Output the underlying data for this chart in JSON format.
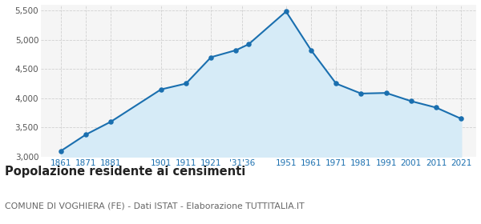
{
  "years": [
    1861,
    1871,
    1881,
    1901,
    1911,
    1921,
    1931,
    1936,
    1951,
    1961,
    1971,
    1981,
    1991,
    2001,
    2011,
    2021
  ],
  "population": [
    3100,
    3380,
    3600,
    4150,
    4250,
    4700,
    4820,
    4920,
    5480,
    4820,
    4250,
    4080,
    4090,
    3950,
    3840,
    3650
  ],
  "x_tick_labels": [
    "1861",
    "1871",
    "1881",
    "1901",
    "1911",
    "1921",
    "'31'36",
    "1951",
    "1961",
    "1971",
    "1981",
    "1991",
    "2001",
    "2011",
    "2021"
  ],
  "x_tick_positions": [
    1861,
    1871,
    1881,
    1901,
    1911,
    1921,
    1933.5,
    1951,
    1961,
    1971,
    1981,
    1991,
    2001,
    2011,
    2021
  ],
  "xlim": [
    1853,
    2027
  ],
  "ylim": [
    3000,
    5600
  ],
  "yticks": [
    3000,
    3500,
    4000,
    4500,
    5000,
    5500
  ],
  "ytick_labels": [
    "3,000",
    "3,500",
    "4,000",
    "4,500",
    "5,000",
    "5,500"
  ],
  "line_color": "#1a6faf",
  "fill_color": "#d6ebf7",
  "marker_color": "#1a6faf",
  "marker_size": 22,
  "title": "Popolazione residente ai censimenti",
  "subtitle": "COMUNE DI VOGHIERA (FE) - Dati ISTAT - Elaborazione TUTTITALIA.IT",
  "title_fontsize": 10.5,
  "subtitle_fontsize": 7.8,
  "grid_color": "#d0d0d0",
  "bg_color": "#f5f5f5",
  "text_color_axis": "#555555",
  "x_label_color": "#1a6faf"
}
